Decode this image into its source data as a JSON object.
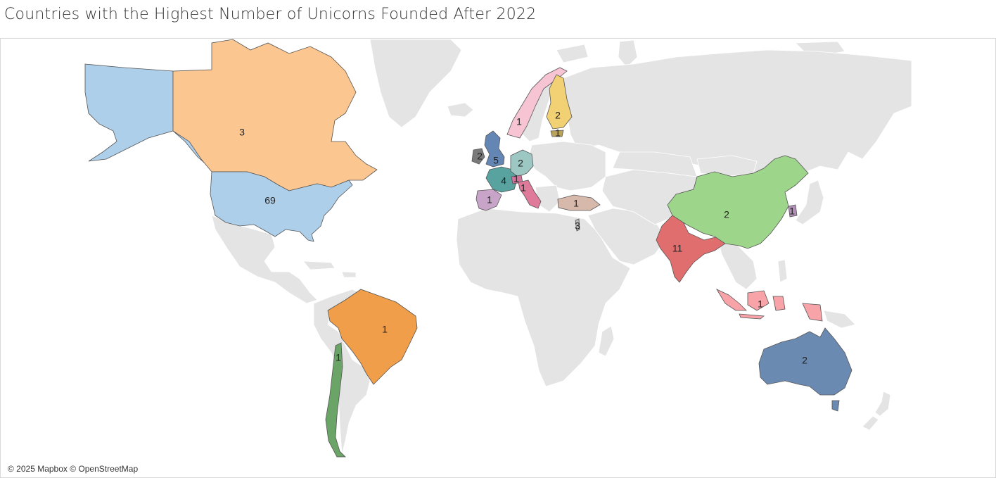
{
  "title": "Countries with the Highest Number of Unicorns Founded After 2022",
  "attribution": "© 2025 Mapbox © OpenStreetMap",
  "colors": {
    "land": "#e4e4e4",
    "land_stroke": "#ffffff",
    "region_stroke": "#555555"
  },
  "chart_data": {
    "type": "choropleth",
    "regions": [
      {
        "name": "United States",
        "value": 69,
        "label": "69",
        "color": "#aecfe9"
      },
      {
        "name": "Alaska",
        "value": 69,
        "label": "",
        "color": "#aecfe9"
      },
      {
        "name": "Canada",
        "value": 3,
        "label": "3",
        "color": "#fbc690"
      },
      {
        "name": "Brazil",
        "value": 1,
        "label": "1",
        "color": "#f09e4a"
      },
      {
        "name": "Chile",
        "value": 1,
        "label": "1",
        "color": "#6aa567"
      },
      {
        "name": "United Kingdom",
        "value": 5,
        "label": "5",
        "color": "#6486b4"
      },
      {
        "name": "Ireland",
        "value": 2,
        "label": "2",
        "color": "#7a7a7a"
      },
      {
        "name": "France",
        "value": 4,
        "label": "4",
        "color": "#58a2a0"
      },
      {
        "name": "Germany",
        "value": 2,
        "label": "2",
        "color": "#9cc7c3"
      },
      {
        "name": "Switzerland",
        "value": 1,
        "label": "1",
        "color": "#d1739a"
      },
      {
        "name": "Italy",
        "value": 1,
        "label": "1",
        "color": "#e07a9b"
      },
      {
        "name": "Spain",
        "value": 1,
        "label": "1",
        "color": "#c9a4c9"
      },
      {
        "name": "Norway",
        "value": 1,
        "label": "1",
        "color": "#f6c4d2"
      },
      {
        "name": "Finland",
        "value": 2,
        "label": "2",
        "color": "#f1d174"
      },
      {
        "name": "Estonia",
        "value": 1,
        "label": "1",
        "color": "#b9a25a"
      },
      {
        "name": "Turkey",
        "value": 1,
        "label": "1",
        "color": "#d7b9ab"
      },
      {
        "name": "Israel",
        "value": 3,
        "label": "3",
        "color": "#bbbbbb"
      },
      {
        "name": "India",
        "value": 11,
        "label": "11",
        "color": "#e16e6e"
      },
      {
        "name": "China",
        "value": 2,
        "label": "2",
        "color": "#9dd68a"
      },
      {
        "name": "South Korea",
        "value": 1,
        "label": "1",
        "color": "#b18fb6"
      },
      {
        "name": "Indonesia",
        "value": 1,
        "label": "1",
        "color": "#f7a3a8"
      },
      {
        "name": "Australia",
        "value": 2,
        "label": "2",
        "color": "#6b8ab2"
      }
    ]
  }
}
